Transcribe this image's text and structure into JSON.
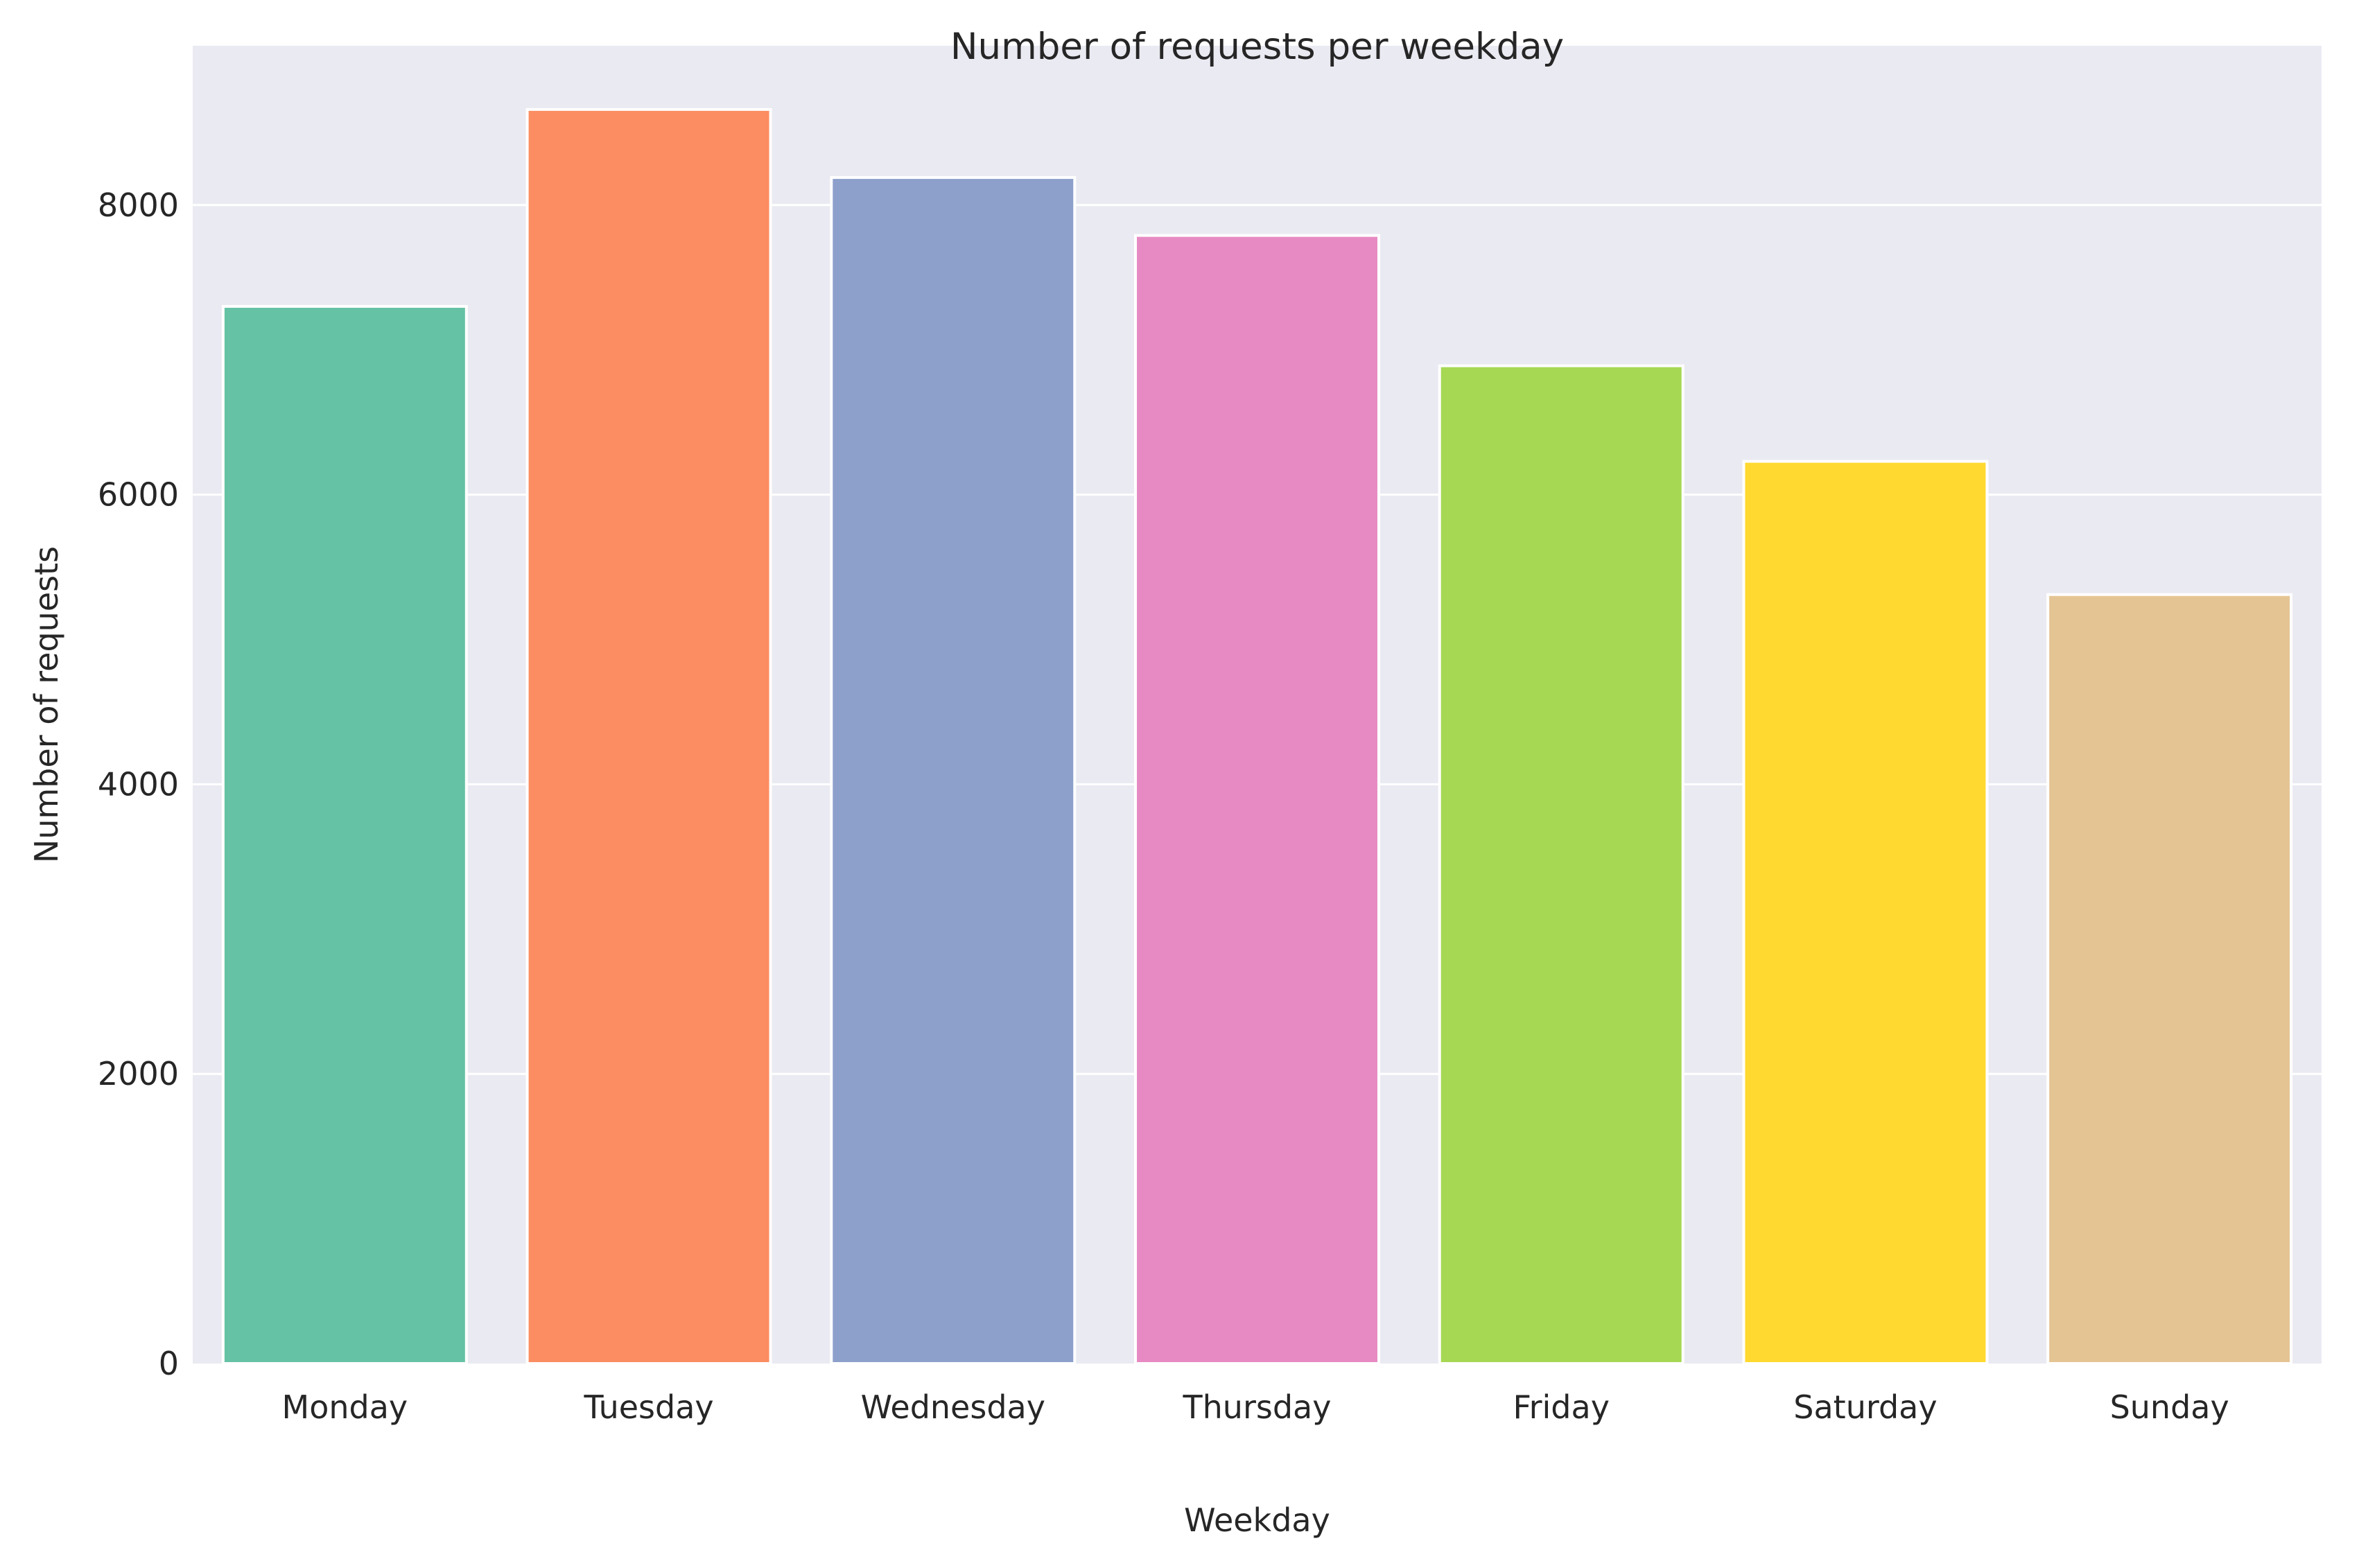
{
  "chart_data": {
    "type": "bar",
    "title": "Number of requests per weekday",
    "xlabel": "Weekday",
    "ylabel": "Number of requests",
    "categories": [
      "Monday",
      "Tuesday",
      "Wednesday",
      "Thursday",
      "Friday",
      "Saturday",
      "Sunday"
    ],
    "values": [
      7300,
      8660,
      8190,
      7790,
      6890,
      6230,
      5310
    ],
    "colors": [
      "#66c2a5",
      "#fc8d62",
      "#8da0cb",
      "#e78ac3",
      "#a6d854",
      "#ffd92f",
      "#e5c494"
    ],
    "ylim": [
      0,
      9100
    ],
    "yticks": [
      0,
      2000,
      4000,
      6000,
      8000
    ],
    "ytick_labels": [
      "0",
      "2000",
      "4000",
      "6000",
      "8000"
    ],
    "grid": true,
    "background": "#eaeaf2",
    "gridline_color": "#ffffff"
  }
}
